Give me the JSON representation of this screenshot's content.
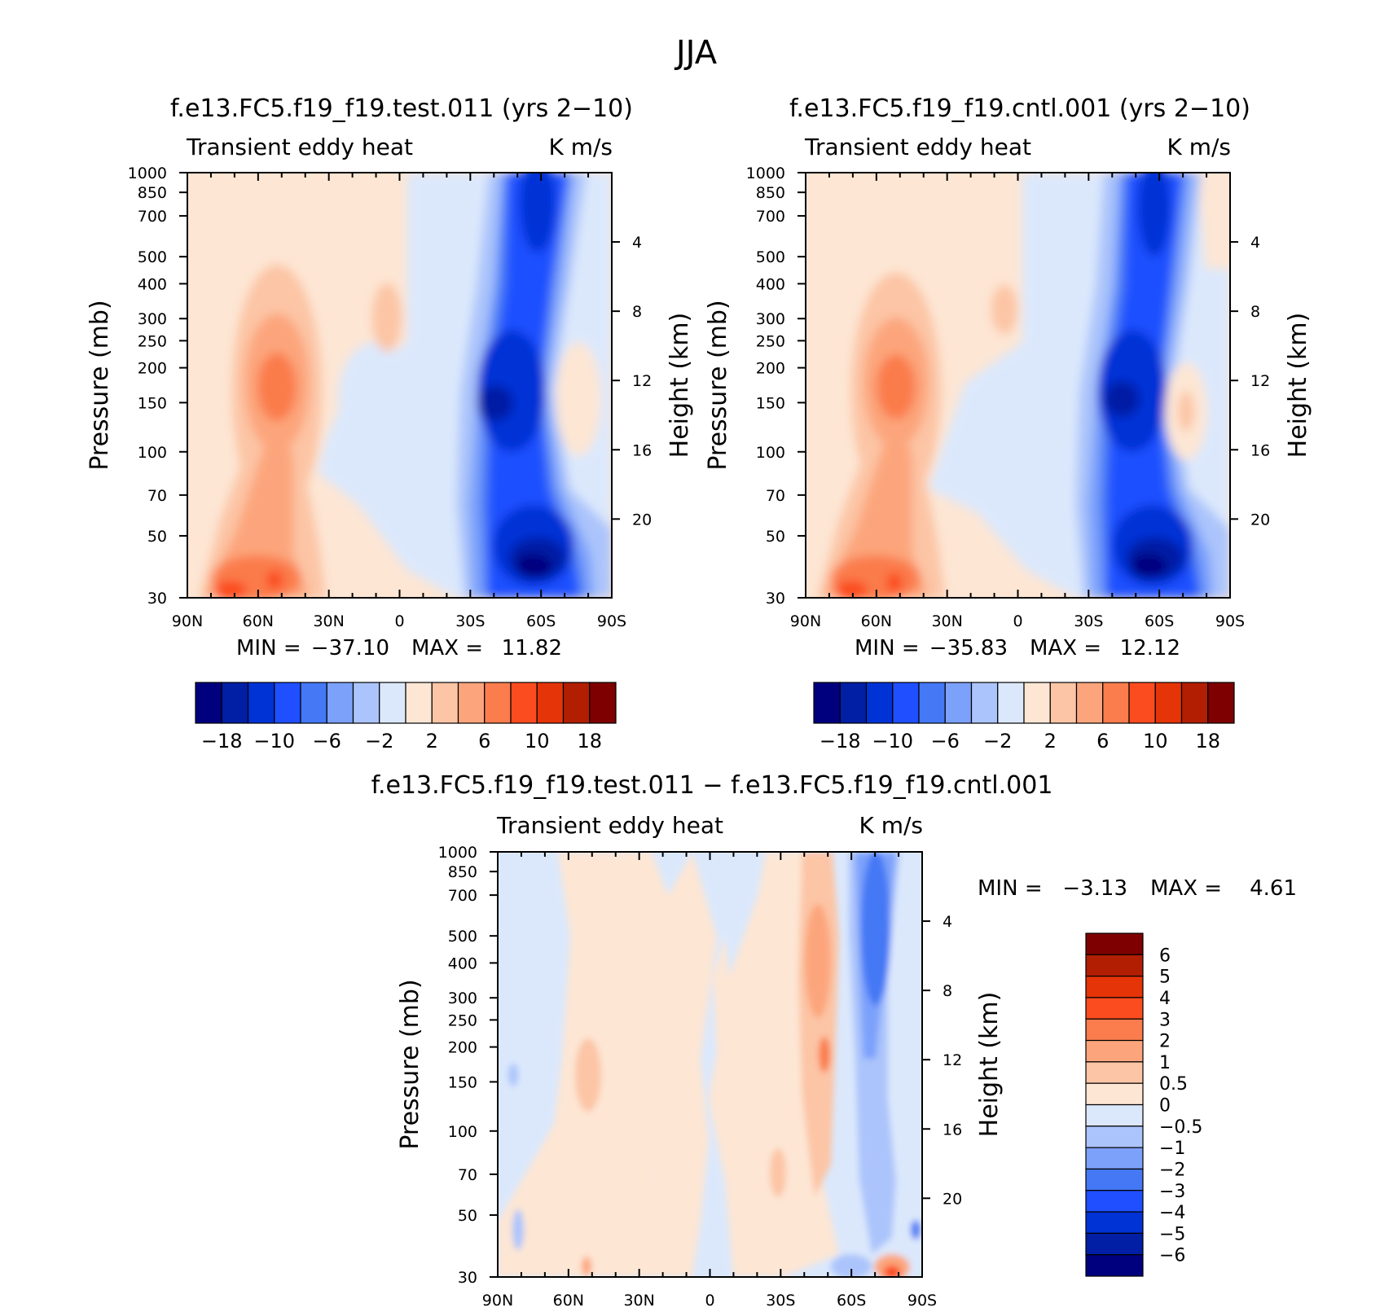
{
  "figure_title": "JJA",
  "chart_data": [
    {
      "type": "heatmap",
      "id": "test",
      "title": "f.e13.FC5.f19_f19.test.011 (yrs 2−10)",
      "variable": "Transient eddy heat",
      "units": "K m/s",
      "ylabel": "Pressure (mb)",
      "y2label": "Height (km)",
      "x_ticks": [
        "90N",
        "60N",
        "30N",
        "0",
        "30S",
        "60S",
        "90S"
      ],
      "x_range": [
        90,
        -90
      ],
      "y_ticks": [
        30,
        50,
        70,
        100,
        150,
        200,
        250,
        300,
        400,
        500,
        700,
        850,
        1000
      ],
      "y_range_mb": [
        1000,
        30
      ],
      "height_ticks_km": [
        4,
        8,
        12,
        16,
        20
      ],
      "stats": {
        "min_label": "MIN =",
        "min": "−37.10",
        "max_label": "MAX =",
        "max": "11.82"
      },
      "colorbar": {
        "orientation": "horizontal",
        "labels": [
          "−18",
          "−10",
          "−6",
          "−2",
          "2",
          "6",
          "10",
          "18"
        ]
      }
    },
    {
      "type": "heatmap",
      "id": "cntl",
      "title": "f.e13.FC5.f19_f19.cntl.001 (yrs 2−10)",
      "variable": "Transient eddy heat",
      "units": "K m/s",
      "ylabel": "Pressure (mb)",
      "y2label": "Height (km)",
      "x_ticks": [
        "90N",
        "60N",
        "30N",
        "0",
        "30S",
        "60S",
        "90S"
      ],
      "x_range": [
        90,
        -90
      ],
      "y_ticks": [
        30,
        50,
        70,
        100,
        150,
        200,
        250,
        300,
        400,
        500,
        700,
        850,
        1000
      ],
      "y_range_mb": [
        1000,
        30
      ],
      "height_ticks_km": [
        4,
        8,
        12,
        16,
        20
      ],
      "stats": {
        "min_label": "MIN =",
        "min": "−35.83",
        "max_label": "MAX =",
        "max": "12.12"
      },
      "colorbar": {
        "orientation": "horizontal",
        "labels": [
          "−18",
          "−10",
          "−6",
          "−2",
          "2",
          "6",
          "10",
          "18"
        ]
      }
    },
    {
      "type": "heatmap",
      "id": "diff",
      "title": "f.e13.FC5.f19_f19.test.011 − f.e13.FC5.f19_f19.cntl.001",
      "variable": "Transient eddy heat",
      "units": "K m/s",
      "ylabel": "Pressure (mb)",
      "y2label": "Height (km)",
      "x_ticks": [
        "90N",
        "60N",
        "30N",
        "0",
        "30S",
        "60S",
        "90S"
      ],
      "x_range": [
        90,
        -90
      ],
      "y_ticks": [
        30,
        50,
        70,
        100,
        150,
        200,
        250,
        300,
        400,
        500,
        700,
        850,
        1000
      ],
      "y_range_mb": [
        1000,
        30
      ],
      "height_ticks_km": [
        4,
        8,
        12,
        16,
        20
      ],
      "stats": {
        "min_label": "MIN =",
        "min": "−3.13",
        "max_label": "MAX =",
        "max": "4.61"
      },
      "colorbar": {
        "orientation": "vertical",
        "labels": [
          "6",
          "5",
          "4",
          "3",
          "2",
          "1",
          "0.5",
          "0",
          "−0.5",
          "−1",
          "−2",
          "−3",
          "−4",
          "−5",
          "−6"
        ]
      }
    }
  ],
  "palette": [
    "#00007f",
    "#001fa5",
    "#0033d6",
    "#1f4fff",
    "#4478f5",
    "#7ca1fb",
    "#abc4fb",
    "#dbe8fc",
    "#fde6d4",
    "#fcc5a5",
    "#fca57c",
    "#fb7c4c",
    "#fb4c1f",
    "#e53408",
    "#b21e02",
    "#7f0000"
  ]
}
